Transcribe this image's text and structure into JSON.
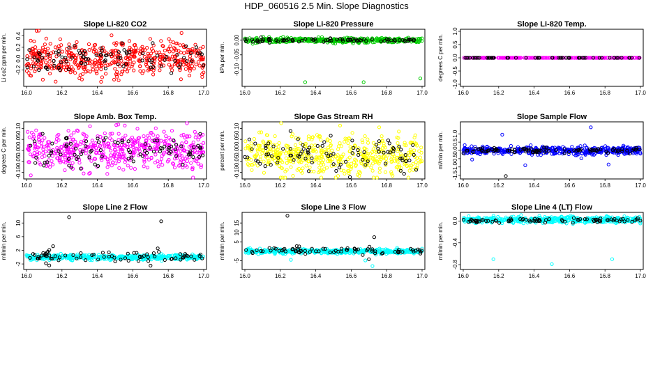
{
  "title": "HDP_060516  2.5 Min. Slope Diagnostics",
  "colors": {
    "red": "#ff0000",
    "green": "#00cc00",
    "magenta": "#ff00ff",
    "yellow": "#ffff00",
    "blue": "#0000ff",
    "cyan": "#00ffff",
    "black": "#000000"
  },
  "chart_data": [
    {
      "type": "scatter",
      "title": "Slope Li-820 CO2",
      "ylabel": "Li co2 ppm per min.",
      "xlim": [
        16.0,
        17.0
      ],
      "ylim": [
        -0.45,
        0.48
      ],
      "xticks": [
        "16.0",
        "16.2",
        "16.4",
        "16.6",
        "16.8",
        "17.0"
      ],
      "yticks": [
        {
          "v": -0.2,
          "label": "-0.2"
        },
        {
          "v": 0.0,
          "label": "0.0"
        },
        {
          "v": 0.2,
          "label": "0.2"
        },
        {
          "v": 0.4,
          "label": "0.4"
        }
      ],
      "series": [
        {
          "color": "red",
          "count": 500,
          "center": 0.0,
          "spread": 0.16,
          "seed": 11
        },
        {
          "color": "black",
          "count": 90,
          "center": 0.0,
          "spread": 0.14,
          "seed": 12
        }
      ],
      "outliers": [
        {
          "color": "red",
          "x": 16.48,
          "y": 0.41
        },
        {
          "color": "red",
          "x": 16.52,
          "y": -0.38
        }
      ]
    },
    {
      "type": "scatter",
      "title": "Slope Li-820 Pressure",
      "ylabel": "kPa per min.",
      "xlim": [
        16.0,
        17.0
      ],
      "ylim": [
        -0.15,
        0.03
      ],
      "xticks": [
        "16.0",
        "16.2",
        "16.4",
        "16.6",
        "16.8",
        "17.0"
      ],
      "yticks": [
        {
          "v": -0.1,
          "label": "-0.10"
        },
        {
          "v": -0.05,
          "label": "-0.05"
        },
        {
          "v": 0.0,
          "label": "0.00"
        }
      ],
      "series": [
        {
          "color": "green",
          "count": 420,
          "center": 0.0,
          "spread": 0.004,
          "seed": 21
        },
        {
          "color": "black",
          "count": 80,
          "center": 0.0,
          "spread": 0.003,
          "seed": 22
        }
      ],
      "outliers": [
        {
          "color": "green",
          "x": 16.34,
          "y": -0.143
        },
        {
          "color": "green",
          "x": 16.67,
          "y": -0.143
        },
        {
          "color": "green",
          "x": 16.99,
          "y": -0.13
        },
        {
          "color": "green",
          "x": 16.51,
          "y": -0.012
        }
      ]
    },
    {
      "type": "scatter",
      "title": "Slope Li-820 Temp.",
      "ylabel": "degrees C per min.",
      "xlim": [
        16.0,
        17.0
      ],
      "ylim": [
        -1.0,
        1.0
      ],
      "xticks": [
        "16.0",
        "16.2",
        "16.4",
        "16.6",
        "16.8",
        "17.0"
      ],
      "yticks": [
        {
          "v": -1.0,
          "label": "-1.0"
        },
        {
          "v": -0.5,
          "label": "-0.5"
        },
        {
          "v": 0.0,
          "label": "0.0"
        },
        {
          "v": 0.5,
          "label": "0.5"
        },
        {
          "v": 1.0,
          "label": "1.0"
        }
      ],
      "series": [
        {
          "color": "magenta",
          "count": 300,
          "center": 0.0,
          "spread": 0.0,
          "seed": 31
        },
        {
          "color": "black",
          "count": 60,
          "center": 0.0,
          "spread": 0.0,
          "seed": 32
        }
      ],
      "outliers": []
    },
    {
      "type": "scatter",
      "title": "Slope Amb. Box Temp.",
      "ylabel": "degrees C per min.",
      "xlim": [
        16.0,
        17.0
      ],
      "ylim": [
        -0.12,
        0.12
      ],
      "xticks": [
        "16.0",
        "16.2",
        "16.4",
        "16.6",
        "16.8",
        "17.0"
      ],
      "yticks": [
        {
          "v": -0.1,
          "label": "-0.10"
        },
        {
          "v": -0.05,
          "label": "-0.05"
        },
        {
          "v": 0.0,
          "label": "0.00"
        },
        {
          "v": 0.05,
          "label": "0.05"
        },
        {
          "v": 0.1,
          "label": "0.10"
        }
      ],
      "series": [
        {
          "color": "magenta",
          "count": 500,
          "center": 0.0,
          "spread": 0.045,
          "seed": 41
        },
        {
          "color": "black",
          "count": 90,
          "center": 0.0,
          "spread": 0.04,
          "seed": 42
        }
      ],
      "outliers": []
    },
    {
      "type": "scatter",
      "title": "Slope Gas Stream RH",
      "ylabel": "percent per min.",
      "xlim": [
        16.0,
        17.0
      ],
      "ylim": [
        -0.12,
        0.12
      ],
      "xticks": [
        "16.0",
        "16.2",
        "16.4",
        "16.6",
        "16.8",
        "17.0"
      ],
      "yticks": [
        {
          "v": -0.1,
          "label": "-0.10"
        },
        {
          "v": -0.05,
          "label": "-0.05"
        },
        {
          "v": 0.0,
          "label": "0.00"
        },
        {
          "v": 0.05,
          "label": "0.05"
        },
        {
          "v": 0.1,
          "label": "0.10"
        }
      ],
      "series": [
        {
          "color": "yellow",
          "count": 500,
          "center": -0.02,
          "spread": 0.045,
          "seed": 51
        },
        {
          "color": "black",
          "count": 90,
          "center": -0.02,
          "spread": 0.04,
          "seed": 52
        }
      ],
      "outliers": []
    },
    {
      "type": "scatter",
      "title": "Slope Sample Flow",
      "ylabel": "ml/min per min.",
      "xlim": [
        16.0,
        17.0
      ],
      "ylim": [
        -1.6,
        1.6
      ],
      "xticks": [
        "16.0",
        "16.2",
        "16.4",
        "16.6",
        "16.8",
        "17.0"
      ],
      "yticks": [
        {
          "v": -1.5,
          "label": "-1.5"
        },
        {
          "v": -1.0,
          "label": "-1.0"
        },
        {
          "v": -0.5,
          "label": "-0.5"
        },
        {
          "v": 0.0,
          "label": "0.0"
        },
        {
          "v": 0.5,
          "label": "0.5"
        },
        {
          "v": 1.0,
          "label": "1.0"
        }
      ],
      "series": [
        {
          "color": "blue",
          "count": 480,
          "center": 0.0,
          "spread": 0.12,
          "seed": 61
        },
        {
          "color": "black",
          "count": 90,
          "center": 0.0,
          "spread": 0.08,
          "seed": 62
        }
      ],
      "outliers": [
        {
          "color": "blue",
          "x": 16.72,
          "y": 1.4
        },
        {
          "color": "blue",
          "x": 16.22,
          "y": 0.95
        },
        {
          "color": "black",
          "x": 16.24,
          "y": -1.55
        },
        {
          "color": "blue",
          "x": 16.82,
          "y": -0.85
        },
        {
          "color": "blue",
          "x": 16.35,
          "y": -0.9
        },
        {
          "color": "blue",
          "x": 16.05,
          "y": -0.55
        }
      ]
    },
    {
      "type": "scatter",
      "title": "Slope Line 2 Flow",
      "ylabel": "ml/min per min.",
      "xlim": [
        16.0,
        17.0
      ],
      "ylim": [
        -3.0,
        12.5
      ],
      "xticks": [
        "16.0",
        "16.2",
        "16.4",
        "16.6",
        "16.8",
        "17.0"
      ],
      "yticks": [
        {
          "v": -2,
          "label": "-2"
        },
        {
          "v": 2,
          "label": "2"
        },
        {
          "v": 6,
          "label": "6"
        },
        {
          "v": 10,
          "label": "10"
        }
      ],
      "series": [
        {
          "color": "cyan",
          "count": 450,
          "center": 0.0,
          "spread": 0.35,
          "seed": 71
        },
        {
          "color": "black",
          "count": 75,
          "center": 0.2,
          "spread": 0.8,
          "seed": 72
        }
      ],
      "outliers": [
        {
          "color": "black",
          "x": 16.24,
          "y": 11.7
        },
        {
          "color": "black",
          "x": 16.76,
          "y": 10.5
        },
        {
          "color": "black",
          "x": 16.15,
          "y": 3.2
        },
        {
          "color": "black",
          "x": 16.7,
          "y": -2.5
        },
        {
          "color": "black",
          "x": 16.11,
          "y": -1.8
        }
      ]
    },
    {
      "type": "scatter",
      "title": "Slope Line 3 Flow",
      "ylabel": "ml/min per min.",
      "xlim": [
        16.0,
        17.0
      ],
      "ylim": [
        -8.5,
        19.5
      ],
      "xticks": [
        "16.0",
        "16.2",
        "16.4",
        "16.6",
        "16.8",
        "17.0"
      ],
      "yticks": [
        {
          "v": -5,
          "label": "-5"
        },
        {
          "v": 5,
          "label": "5"
        },
        {
          "v": 10,
          "label": "10"
        },
        {
          "v": 15,
          "label": "15"
        }
      ],
      "series": [
        {
          "color": "cyan",
          "count": 450,
          "center": 0.0,
          "spread": 0.6,
          "seed": 81
        },
        {
          "color": "black",
          "count": 75,
          "center": 0.3,
          "spread": 0.9,
          "seed": 82
        }
      ],
      "outliers": [
        {
          "color": "black",
          "x": 16.24,
          "y": 18.8
        },
        {
          "color": "black",
          "x": 16.73,
          "y": 7.5
        },
        {
          "color": "cyan",
          "x": 16.72,
          "y": -7.8
        },
        {
          "color": "cyan",
          "x": 16.26,
          "y": -4.5
        },
        {
          "color": "black",
          "x": 16.7,
          "y": -4.2
        },
        {
          "color": "cyan",
          "x": 16.68,
          "y": -4.8
        }
      ]
    },
    {
      "type": "scatter",
      "title": "Slope Line 4 (LT) Flow",
      "ylabel": "ml/min per min.",
      "xlim": [
        16.0,
        17.0
      ],
      "ylim": [
        -0.85,
        0.12
      ],
      "xticks": [
        "16.0",
        "16.2",
        "16.4",
        "16.6",
        "16.8",
        "17.0"
      ],
      "yticks": [
        {
          "v": -0.8,
          "label": "-0.8"
        },
        {
          "v": -0.4,
          "label": "-0.4"
        },
        {
          "v": 0.0,
          "label": "0.0"
        }
      ],
      "series": [
        {
          "color": "cyan",
          "count": 450,
          "center": 0.02,
          "spread": 0.03,
          "seed": 91
        },
        {
          "color": "black",
          "count": 80,
          "center": 0.01,
          "spread": 0.02,
          "seed": 92
        }
      ],
      "outliers": [
        {
          "color": "cyan",
          "x": 16.17,
          "y": -0.7
        },
        {
          "color": "cyan",
          "x": 16.5,
          "y": -0.79
        },
        {
          "color": "cyan",
          "x": 16.84,
          "y": -0.7
        }
      ]
    }
  ]
}
